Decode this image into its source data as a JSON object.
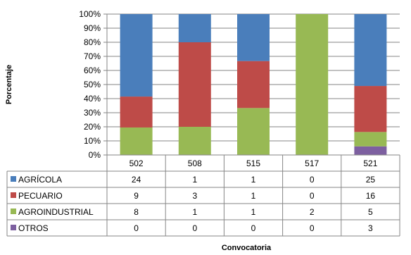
{
  "chart_data": {
    "type": "bar",
    "stacked": true,
    "percent_stacked": true,
    "xlabel": "Convocatoria",
    "ylabel": "Porcentaje",
    "ylim": [
      0,
      100
    ],
    "y_ticks": [
      "0%",
      "10%",
      "20%",
      "30%",
      "40%",
      "50%",
      "60%",
      "70%",
      "80%",
      "90%",
      "100%"
    ],
    "categories": [
      "502",
      "508",
      "515",
      "517",
      "521"
    ],
    "series": [
      {
        "name": "AGRÍCOLA",
        "color": "#4a7ebb",
        "values": [
          24,
          1,
          1,
          0,
          25
        ]
      },
      {
        "name": "PECUARIO",
        "color": "#be4b48",
        "values": [
          9,
          3,
          1,
          0,
          16
        ]
      },
      {
        "name": "AGROINDUSTRIAL",
        "color": "#98b954",
        "values": [
          8,
          1,
          1,
          2,
          5
        ]
      },
      {
        "name": "OTROS",
        "color": "#7d60a0",
        "values": [
          0,
          0,
          0,
          0,
          3
        ]
      }
    ],
    "stack_order_bottom_to_top": [
      "OTROS",
      "AGROINDUSTRIAL",
      "PECUARIO",
      "AGRÍCOLA"
    ],
    "grid": true,
    "legend": "data table below chart"
  }
}
